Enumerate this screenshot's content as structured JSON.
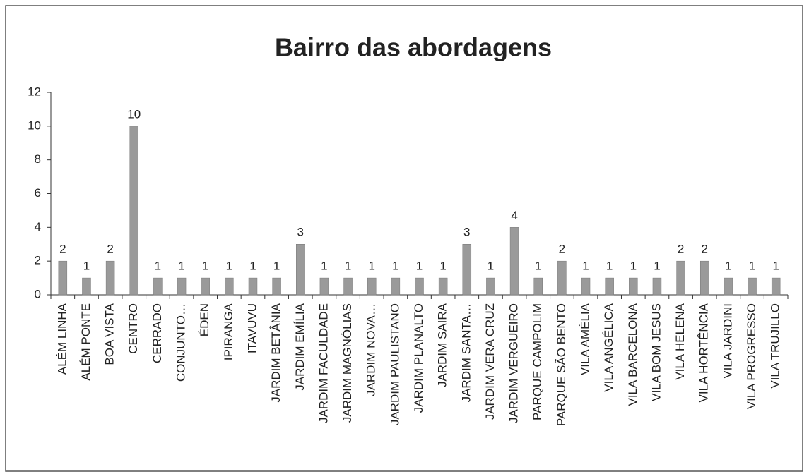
{
  "chart_data": {
    "type": "bar",
    "title": "Bairro das abordagens",
    "categories": [
      "ALÉM LINHA",
      "ALÉM PONTE",
      "BOA VISTA",
      "CENTRO",
      "CERRADO",
      "CONJUNTO…",
      "ÉDEN",
      "IPIRANGA",
      "ITAVUVU",
      "JARDIM BETÂNIA",
      "JARDIM EMÍLIA",
      "JARDIM FACULDADE",
      "JARDIM MAGNÓLIAS",
      "JARDIM NOVA…",
      "JARDIM PAULISTANO",
      "JARDIM PLANALTO",
      "JARDIM SAIRA",
      "JARDIM SANTA…",
      "JARDIM VERA CRUZ",
      "JARDIM VERGUEIRO",
      "PARQUE CAMPOLIM",
      "PARQUE SÃO BENTO",
      "VILA AMÉLIA",
      "VILA ANGÉLICA",
      "VILA BARCELONA",
      "VILA BOM JESUS",
      "VILA HELENA",
      "VILA HORTÊNCIA",
      "VILA JARDINI",
      "VILA PROGRESSO",
      "VILA TRUJILLO"
    ],
    "values": [
      2,
      1,
      2,
      10,
      1,
      1,
      1,
      1,
      1,
      1,
      3,
      1,
      1,
      1,
      1,
      1,
      1,
      3,
      1,
      4,
      1,
      2,
      1,
      1,
      1,
      1,
      2,
      2,
      1,
      1,
      1
    ],
    "color": "#9a9a9a",
    "ylim": [
      0,
      12
    ],
    "yticks": [
      0,
      2,
      4,
      6,
      8,
      10,
      12
    ]
  }
}
